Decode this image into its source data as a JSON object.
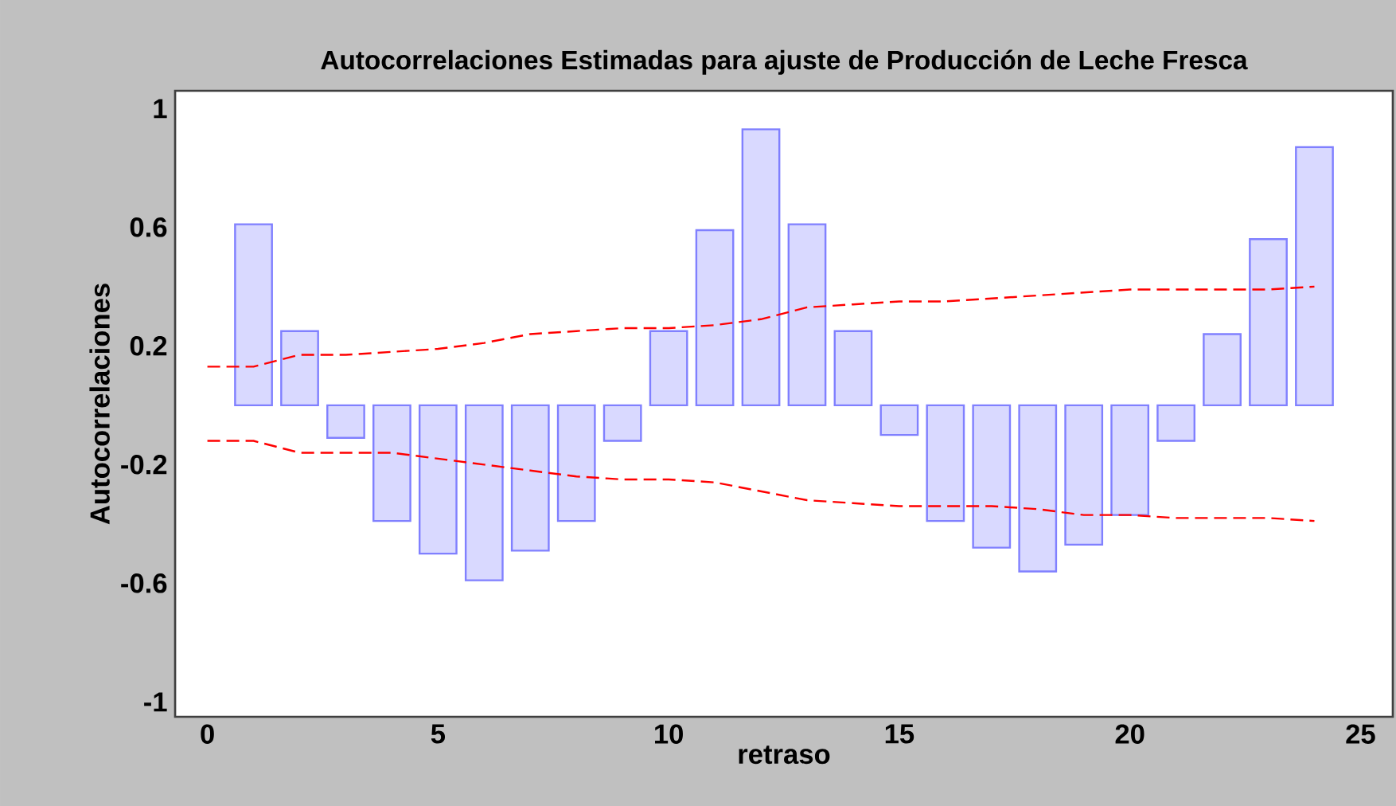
{
  "chart_data": {
    "type": "bar",
    "title": "Autocorrelaciones Estimadas para ajuste de Producción de Leche Fresca",
    "xlabel": "retraso",
    "ylabel": "Autocorrelaciones",
    "xlim": [
      -0.7,
      25.7
    ],
    "xticks": [
      0,
      5,
      10,
      15,
      20,
      25
    ],
    "ylim": [
      -1.05,
      1.06
    ],
    "yticks": [
      1,
      0.6,
      0.2,
      -0.2,
      -0.6,
      -1
    ],
    "grid": false,
    "series": [
      {
        "color": "#8080ff",
        "x": [
          1,
          2,
          3,
          4,
          5,
          6,
          7,
          8,
          9,
          10,
          11,
          12,
          13,
          14,
          15,
          16,
          17,
          18,
          19,
          20,
          21,
          22,
          23,
          24
        ],
        "values": [
          0.61,
          0.25,
          -0.11,
          -0.39,
          -0.5,
          -0.59,
          -0.49,
          -0.39,
          -0.12,
          0.25,
          0.59,
          0.93,
          0.61,
          0.25,
          -0.1,
          -0.39,
          -0.48,
          -0.56,
          -0.47,
          -0.37,
          -0.12,
          0.24,
          0.56,
          0.87
        ]
      },
      {
        "type": "line",
        "color": "#ff0000",
        "line_style": "dashed",
        "marker": "none",
        "x": [
          0,
          1,
          2,
          3,
          4,
          5,
          6,
          7,
          8,
          9,
          10,
          11,
          12,
          13,
          14,
          15,
          16,
          17,
          18,
          19,
          20,
          21,
          22,
          23,
          24
        ],
        "values": [
          0.13,
          0.13,
          0.17,
          0.17,
          0.18,
          0.19,
          0.21,
          0.24,
          0.25,
          0.26,
          0.26,
          0.27,
          0.29,
          0.33,
          0.34,
          0.35,
          0.35,
          0.36,
          0.37,
          0.38,
          0.39,
          0.39,
          0.39,
          0.39,
          0.4
        ]
      },
      {
        "type": "line",
        "color": "#ff0000",
        "line_style": "dashed",
        "marker": "none",
        "x": [
          0,
          1,
          2,
          3,
          4,
          5,
          6,
          7,
          8,
          9,
          10,
          11,
          12,
          13,
          14,
          15,
          16,
          17,
          18,
          19,
          20,
          21,
          22,
          23,
          24
        ],
        "values": [
          -0.12,
          -0.12,
          -0.16,
          -0.16,
          -0.16,
          -0.18,
          -0.2,
          -0.22,
          -0.24,
          -0.25,
          -0.25,
          -0.26,
          -0.29,
          -0.32,
          -0.33,
          -0.34,
          -0.34,
          -0.34,
          -0.35,
          -0.37,
          -0.37,
          -0.38,
          -0.38,
          -0.38,
          -0.39
        ]
      }
    ]
  }
}
